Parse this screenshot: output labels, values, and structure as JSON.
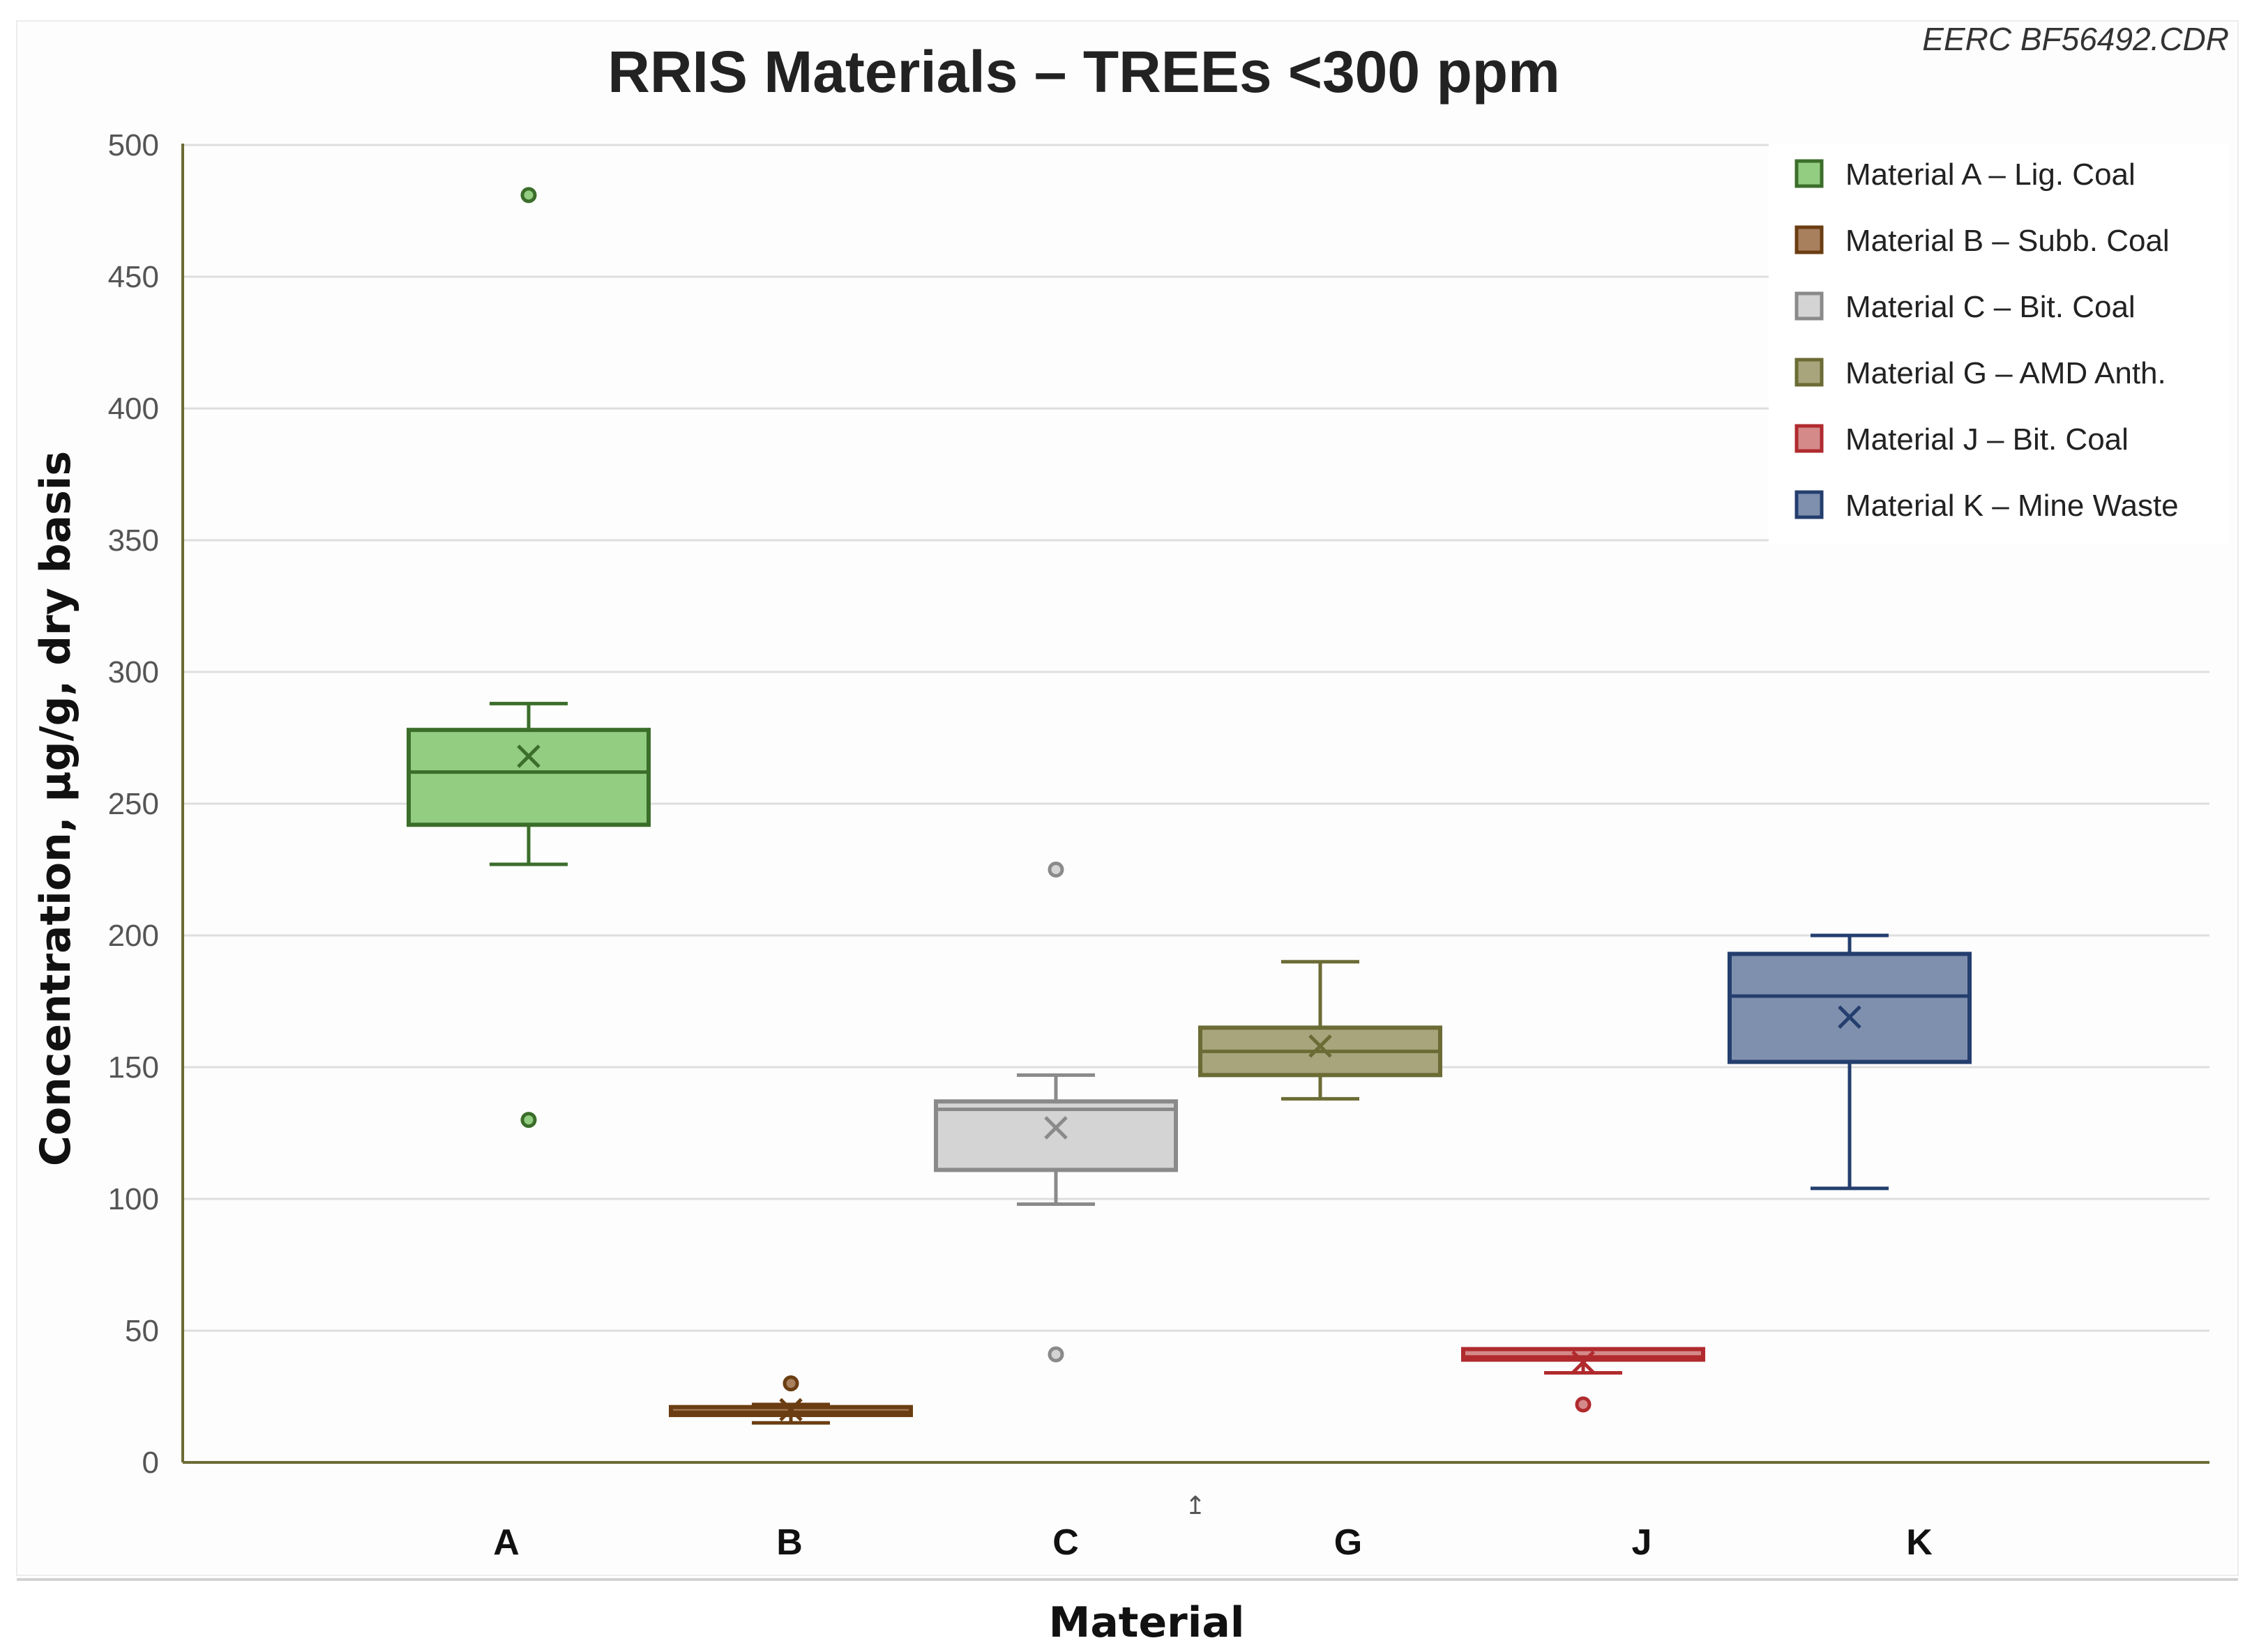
{
  "credit": "EERC BF56492.CDR",
  "stray_mark": "↥",
  "chart_data": {
    "type": "box",
    "title": "RRIS Materials – TREEs <300 ppm",
    "xlabel": "Material",
    "ylabel": "Concentration, µg/g, dry basis",
    "ylim": [
      0,
      500
    ],
    "yticks": [
      0,
      50,
      100,
      150,
      200,
      250,
      300,
      350,
      400,
      450,
      500
    ],
    "grid": true,
    "legend_position": "top-right",
    "categories": [
      "A",
      "B",
      "C",
      "G",
      "J",
      "K"
    ],
    "series": [
      {
        "category": "A",
        "name": "Material A – Lig. Coal",
        "color": "#3b6e2a",
        "fill": "#93cd82",
        "whisker_low": 227,
        "q1": 242,
        "median": 262,
        "q3": 278,
        "whisker_high": 288,
        "mean": 268,
        "outliers": [
          481,
          130
        ]
      },
      {
        "category": "B",
        "name": "Material B – Subb. Coal",
        "color": "#6b3d12",
        "fill": "#a8805e",
        "whisker_low": 15,
        "q1": 18,
        "median": 19,
        "q3": 21,
        "whisker_high": 22,
        "mean": 20,
        "outliers": [
          30
        ]
      },
      {
        "category": "C",
        "name": "Material C – Bit. Coal",
        "color": "#8a8a8a",
        "fill": "#d4d4d4",
        "whisker_low": 98,
        "q1": 111,
        "median": 134,
        "q3": 137,
        "whisker_high": 147,
        "mean": 127,
        "outliers": [
          225,
          41
        ]
      },
      {
        "category": "G",
        "name": "Material G – AMD Anth.",
        "color": "#6b6b35",
        "fill": "#a8a47c",
        "whisker_low": 138,
        "q1": 147,
        "median": 156,
        "q3": 165,
        "whisker_high": 190,
        "mean": 158,
        "outliers": []
      },
      {
        "category": "J",
        "name": "Material J – Bit. Coal",
        "color": "#b02a2e",
        "fill": "#d58a8a",
        "whisker_low": 34,
        "q1": 39,
        "median": 40,
        "q3": 43,
        "whisker_high": 43,
        "mean": 38,
        "outliers": [
          22
        ]
      },
      {
        "category": "K",
        "name": "Material K – Mine Waste",
        "color": "#243e6e",
        "fill": "#7f90ae",
        "whisker_low": 104,
        "q1": 152,
        "median": 177,
        "q3": 193,
        "whisker_high": 200,
        "mean": 169,
        "outliers": []
      }
    ]
  }
}
